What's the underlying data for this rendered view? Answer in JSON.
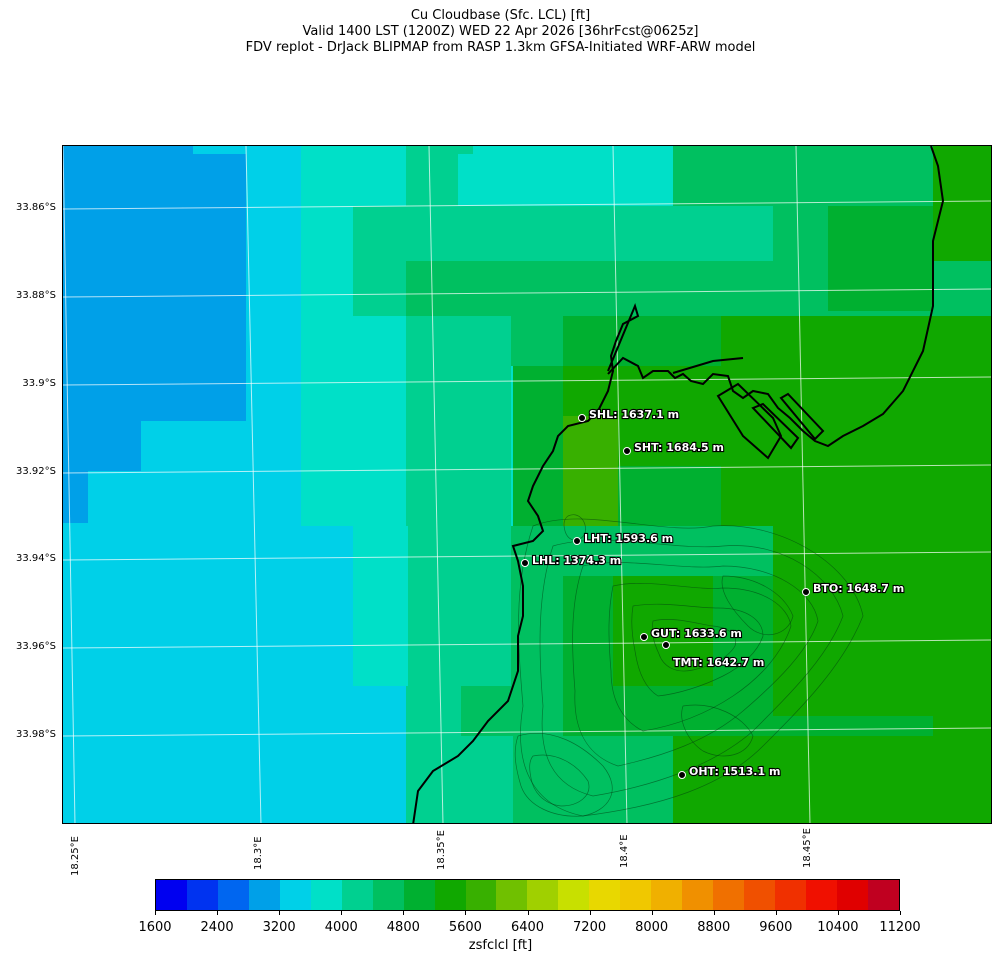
{
  "title": {
    "line1": "Cu Cloudbase (Sfc. LCL) [ft]",
    "line2": "Valid 1400 LST (1200Z) WED 22 Apr 2026 [36hrFcst@0625z]",
    "line3": "FDV replot - DrJack BLIPMAP from RASP 1.3km GFSA-Initiated WRF-ARW model"
  },
  "axes": {
    "lat_labels": [
      "33.86°S",
      "33.88°S",
      "33.9°S",
      "33.92°S",
      "33.94°S",
      "33.96°S",
      "33.98°S"
    ],
    "lon_labels": [
      "18.25°E",
      "18.3°E",
      "18.35°E",
      "18.4°E",
      "18.45°E"
    ]
  },
  "stations": [
    {
      "id": "SHL",
      "label": "SHL: 1637.1 m"
    },
    {
      "id": "SHT",
      "label": "SHT: 1684.5 m"
    },
    {
      "id": "LHT",
      "label": "LHT: 1593.6 m"
    },
    {
      "id": "LHL",
      "label": "LHL: 1374.3 m"
    },
    {
      "id": "BTO",
      "label": "BTO: 1648.7 m"
    },
    {
      "id": "GUT",
      "label": "GUT: 1633.6 m"
    },
    {
      "id": "TMT",
      "label": "TMT: 1642.7 m"
    },
    {
      "id": "OHT",
      "label": "OHT: 1513.1 m"
    }
  ],
  "colorbar": {
    "label": "zsfclcl [ft]",
    "ticks": [
      "1600",
      "2400",
      "3200",
      "4000",
      "4800",
      "5600",
      "6400",
      "7200",
      "8000",
      "8800",
      "9600",
      "10400",
      "11200"
    ],
    "colors": [
      "#0000f0",
      "#0033f0",
      "#0066f0",
      "#00a0e8",
      "#00d0e8",
      "#00e0c8",
      "#00d090",
      "#00c060",
      "#00b030",
      "#10a800",
      "#38b000",
      "#70c000",
      "#a0d000",
      "#c8e000",
      "#e8d800",
      "#f0c800",
      "#f0b000",
      "#f09000",
      "#f07000",
      "#f05000",
      "#f03000",
      "#f01000",
      "#e00000",
      "#c00020"
    ]
  },
  "map_colors": {
    "c3000": "#00a0e8",
    "c3500": "#00d0e8",
    "c4000": "#00e0c8",
    "c4400": "#00d090",
    "c4800": "#00c060",
    "c5200": "#00b030",
    "c5600": "#10a800",
    "c6000": "#38b000"
  }
}
